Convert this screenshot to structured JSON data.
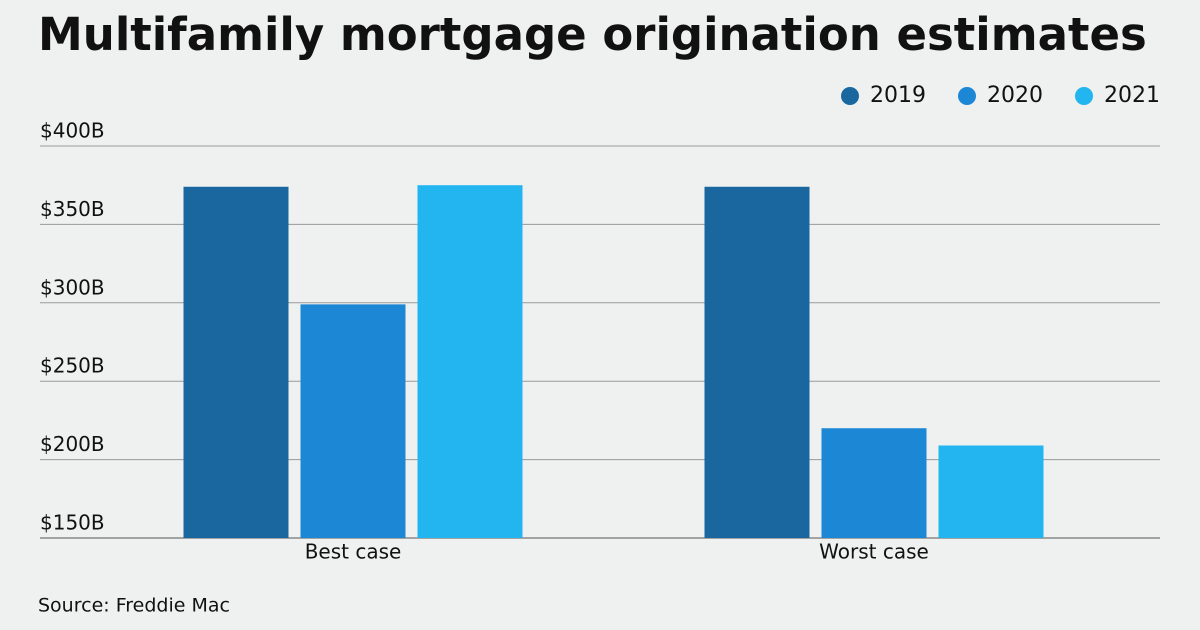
{
  "chart_data": {
    "type": "bar",
    "title": "Multifamily mortgage origination estimates",
    "categories": [
      "Best case",
      "Worst case"
    ],
    "series": [
      {
        "name": "2019",
        "color": "#1a67a0",
        "values": [
          374,
          374
        ]
      },
      {
        "name": "2020",
        "color": "#1c87d4",
        "values": [
          299,
          220
        ]
      },
      {
        "name": "2021",
        "color": "#22b5f0",
        "values": [
          375,
          209
        ]
      }
    ],
    "ylim": [
      150,
      400
    ],
    "yticks": [
      {
        "value": 150,
        "label": "$150B"
      },
      {
        "value": 200,
        "label": "$200B"
      },
      {
        "value": 250,
        "label": "$250B"
      },
      {
        "value": 300,
        "label": "$300B"
      },
      {
        "value": 350,
        "label": "$350B"
      },
      {
        "value": 400,
        "label": "$400B"
      }
    ],
    "grid": true,
    "legend": "top-right",
    "source": "Source: Freddie Mac"
  }
}
